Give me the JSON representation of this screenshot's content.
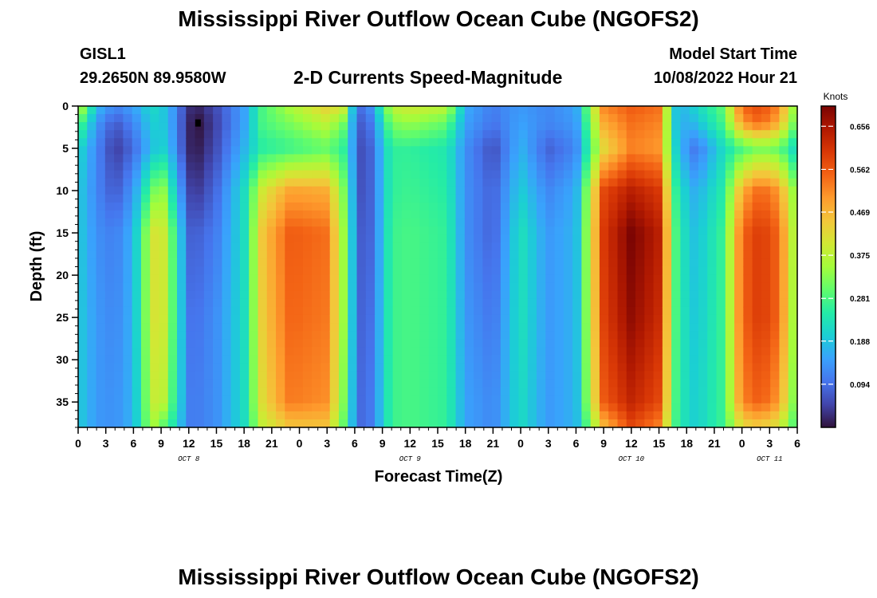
{
  "header": {
    "title": "Mississippi River Outflow Ocean Cube (NGOFS2)",
    "station_id": "GISL1",
    "location": "29.2650N  89.9580W",
    "plot_title": "2-D Currents Speed-Magnitude",
    "model_start_label": "Model Start Time",
    "model_start_value": "10/08/2022 Hour 21"
  },
  "footer": {
    "title": "Mississippi River Outflow Ocean Cube (NGOFS2)"
  },
  "chart_data": {
    "type": "heatmap",
    "title": "2-D Currents Speed-Magnitude",
    "xlabel": "Forecast Time(Z)",
    "ylabel": "Depth (ft)",
    "x_range_hours_from_oct8_00z": [
      0,
      78
    ],
    "x_tick_labels": [
      "0",
      "3",
      "6",
      "9",
      "12",
      "15",
      "18",
      "21",
      "0",
      "3",
      "6",
      "9",
      "12",
      "15",
      "18",
      "21",
      "0",
      "3",
      "6",
      "9",
      "12",
      "15",
      "18",
      "21",
      "0",
      "3",
      "6"
    ],
    "date_labels": [
      {
        "label": "OCT 8",
        "hour": 12
      },
      {
        "label": "OCT 9",
        "hour": 36
      },
      {
        "label": "OCT 10",
        "hour": 60
      },
      {
        "label": "OCT 11",
        "hour": 75
      }
    ],
    "y_ticks": [
      0,
      5,
      10,
      15,
      20,
      25,
      30,
      35
    ],
    "y_range": [
      0,
      38
    ],
    "y_inverted": true,
    "colorbar": {
      "unit": "Knots",
      "range": [
        0,
        0.7
      ],
      "ticks": [
        "0.094",
        "0.188",
        "0.281",
        "0.375",
        "0.469",
        "0.562",
        "0.656"
      ],
      "colormap": [
        "#30123b",
        "#4145ab",
        "#4675ed",
        "#39a2fc",
        "#1bcfd4",
        "#24eca6",
        "#61fc6c",
        "#a4fc3b",
        "#d1e834",
        "#f3c63a",
        "#fe9b2d",
        "#f36315",
        "#d93806",
        "#b11901",
        "#7a0403"
      ]
    },
    "speed_surface_knots": {
      "depth_grid_ft": [
        0,
        2,
        5,
        10,
        15,
        25,
        35,
        38
      ],
      "columns": [
        {
          "hour": 0,
          "speeds": [
            0.4,
            0.3,
            0.22,
            0.2,
            0.2,
            0.2,
            0.2,
            0.2
          ]
        },
        {
          "hour": 2,
          "speeds": [
            0.18,
            0.14,
            0.12,
            0.12,
            0.13,
            0.14,
            0.14,
            0.14
          ]
        },
        {
          "hour": 4,
          "speeds": [
            0.12,
            0.07,
            0.04,
            0.07,
            0.11,
            0.12,
            0.13,
            0.13
          ]
        },
        {
          "hour": 6,
          "speeds": [
            0.15,
            0.12,
            0.09,
            0.14,
            0.17,
            0.17,
            0.17,
            0.17
          ]
        },
        {
          "hour": 8,
          "speeds": [
            0.22,
            0.2,
            0.18,
            0.3,
            0.4,
            0.4,
            0.38,
            0.36
          ]
        },
        {
          "hour": 9,
          "speeds": [
            0.2,
            0.2,
            0.21,
            0.36,
            0.42,
            0.42,
            0.4,
            0.3
          ]
        },
        {
          "hour": 10,
          "speeds": [
            0.16,
            0.16,
            0.17,
            0.25,
            0.32,
            0.32,
            0.3,
            0.26
          ]
        },
        {
          "hour": 12,
          "speeds": [
            0.03,
            0.02,
            0.02,
            0.05,
            0.08,
            0.1,
            0.11,
            0.11
          ]
        },
        {
          "hour": 13,
          "speeds": [
            0.02,
            0.0,
            0.01,
            0.04,
            0.08,
            0.1,
            0.11,
            0.11
          ]
        },
        {
          "hour": 15,
          "speeds": [
            0.06,
            0.05,
            0.06,
            0.09,
            0.11,
            0.13,
            0.13,
            0.13
          ]
        },
        {
          "hour": 18,
          "speeds": [
            0.15,
            0.15,
            0.17,
            0.22,
            0.22,
            0.22,
            0.22,
            0.22
          ]
        },
        {
          "hour": 20,
          "speeds": [
            0.28,
            0.28,
            0.25,
            0.4,
            0.45,
            0.44,
            0.42,
            0.38
          ]
        },
        {
          "hour": 23,
          "speeds": [
            0.36,
            0.32,
            0.27,
            0.49,
            0.56,
            0.55,
            0.53,
            0.45
          ]
        },
        {
          "hour": 27,
          "speeds": [
            0.44,
            0.38,
            0.3,
            0.48,
            0.54,
            0.53,
            0.51,
            0.45
          ]
        },
        {
          "hour": 29,
          "speeds": [
            0.4,
            0.3,
            0.25,
            0.3,
            0.32,
            0.32,
            0.3,
            0.28
          ]
        },
        {
          "hour": 30,
          "speeds": [
            0.12,
            0.12,
            0.12,
            0.13,
            0.14,
            0.14,
            0.14,
            0.14
          ]
        },
        {
          "hour": 31,
          "speeds": [
            0.09,
            0.06,
            0.04,
            0.04,
            0.05,
            0.06,
            0.07,
            0.07
          ]
        },
        {
          "hour": 32,
          "speeds": [
            0.15,
            0.12,
            0.1,
            0.1,
            0.1,
            0.11,
            0.12,
            0.12
          ]
        },
        {
          "hour": 34,
          "speeds": [
            0.38,
            0.32,
            0.26,
            0.26,
            0.27,
            0.27,
            0.27,
            0.27
          ]
        },
        {
          "hour": 36,
          "speeds": [
            0.4,
            0.34,
            0.26,
            0.27,
            0.28,
            0.28,
            0.28,
            0.28
          ]
        },
        {
          "hour": 40,
          "speeds": [
            0.38,
            0.3,
            0.24,
            0.25,
            0.26,
            0.26,
            0.26,
            0.26
          ]
        },
        {
          "hour": 42,
          "speeds": [
            0.16,
            0.15,
            0.13,
            0.13,
            0.13,
            0.14,
            0.15,
            0.15
          ]
        },
        {
          "hour": 45,
          "speeds": [
            0.11,
            0.1,
            0.06,
            0.08,
            0.08,
            0.1,
            0.12,
            0.12
          ]
        },
        {
          "hour": 48,
          "speeds": [
            0.14,
            0.15,
            0.17,
            0.2,
            0.23,
            0.23,
            0.22,
            0.22
          ]
        },
        {
          "hour": 51,
          "speeds": [
            0.12,
            0.12,
            0.08,
            0.12,
            0.14,
            0.14,
            0.14,
            0.14
          ]
        },
        {
          "hour": 54,
          "speeds": [
            0.15,
            0.14,
            0.12,
            0.16,
            0.17,
            0.17,
            0.17,
            0.17
          ]
        },
        {
          "hour": 57,
          "speeds": [
            0.52,
            0.48,
            0.42,
            0.58,
            0.6,
            0.59,
            0.56,
            0.46
          ]
        },
        {
          "hour": 60,
          "speeds": [
            0.56,
            0.54,
            0.52,
            0.64,
            0.7,
            0.68,
            0.63,
            0.58
          ]
        },
        {
          "hour": 63,
          "speeds": [
            0.54,
            0.52,
            0.5,
            0.6,
            0.64,
            0.62,
            0.58,
            0.52
          ]
        },
        {
          "hour": 65,
          "speeds": [
            0.16,
            0.16,
            0.18,
            0.23,
            0.25,
            0.25,
            0.25,
            0.25
          ]
        },
        {
          "hour": 67,
          "speeds": [
            0.21,
            0.18,
            0.1,
            0.16,
            0.18,
            0.19,
            0.2,
            0.2
          ]
        },
        {
          "hour": 70,
          "speeds": [
            0.3,
            0.28,
            0.22,
            0.25,
            0.27,
            0.27,
            0.27,
            0.27
          ]
        },
        {
          "hour": 72,
          "speeds": [
            0.55,
            0.5,
            0.28,
            0.48,
            0.55,
            0.55,
            0.52,
            0.42
          ]
        },
        {
          "hour": 74,
          "speeds": [
            0.58,
            0.55,
            0.32,
            0.55,
            0.6,
            0.6,
            0.56,
            0.44
          ]
        },
        {
          "hour": 76,
          "speeds": [
            0.52,
            0.48,
            0.3,
            0.5,
            0.55,
            0.55,
            0.5,
            0.4
          ]
        },
        {
          "hour": 78,
          "speeds": [
            0.3,
            0.28,
            0.2,
            0.3,
            0.32,
            0.3,
            0.28,
            0.26
          ]
        }
      ]
    },
    "marker": {
      "hour": 13,
      "depth_ft": 2
    }
  }
}
